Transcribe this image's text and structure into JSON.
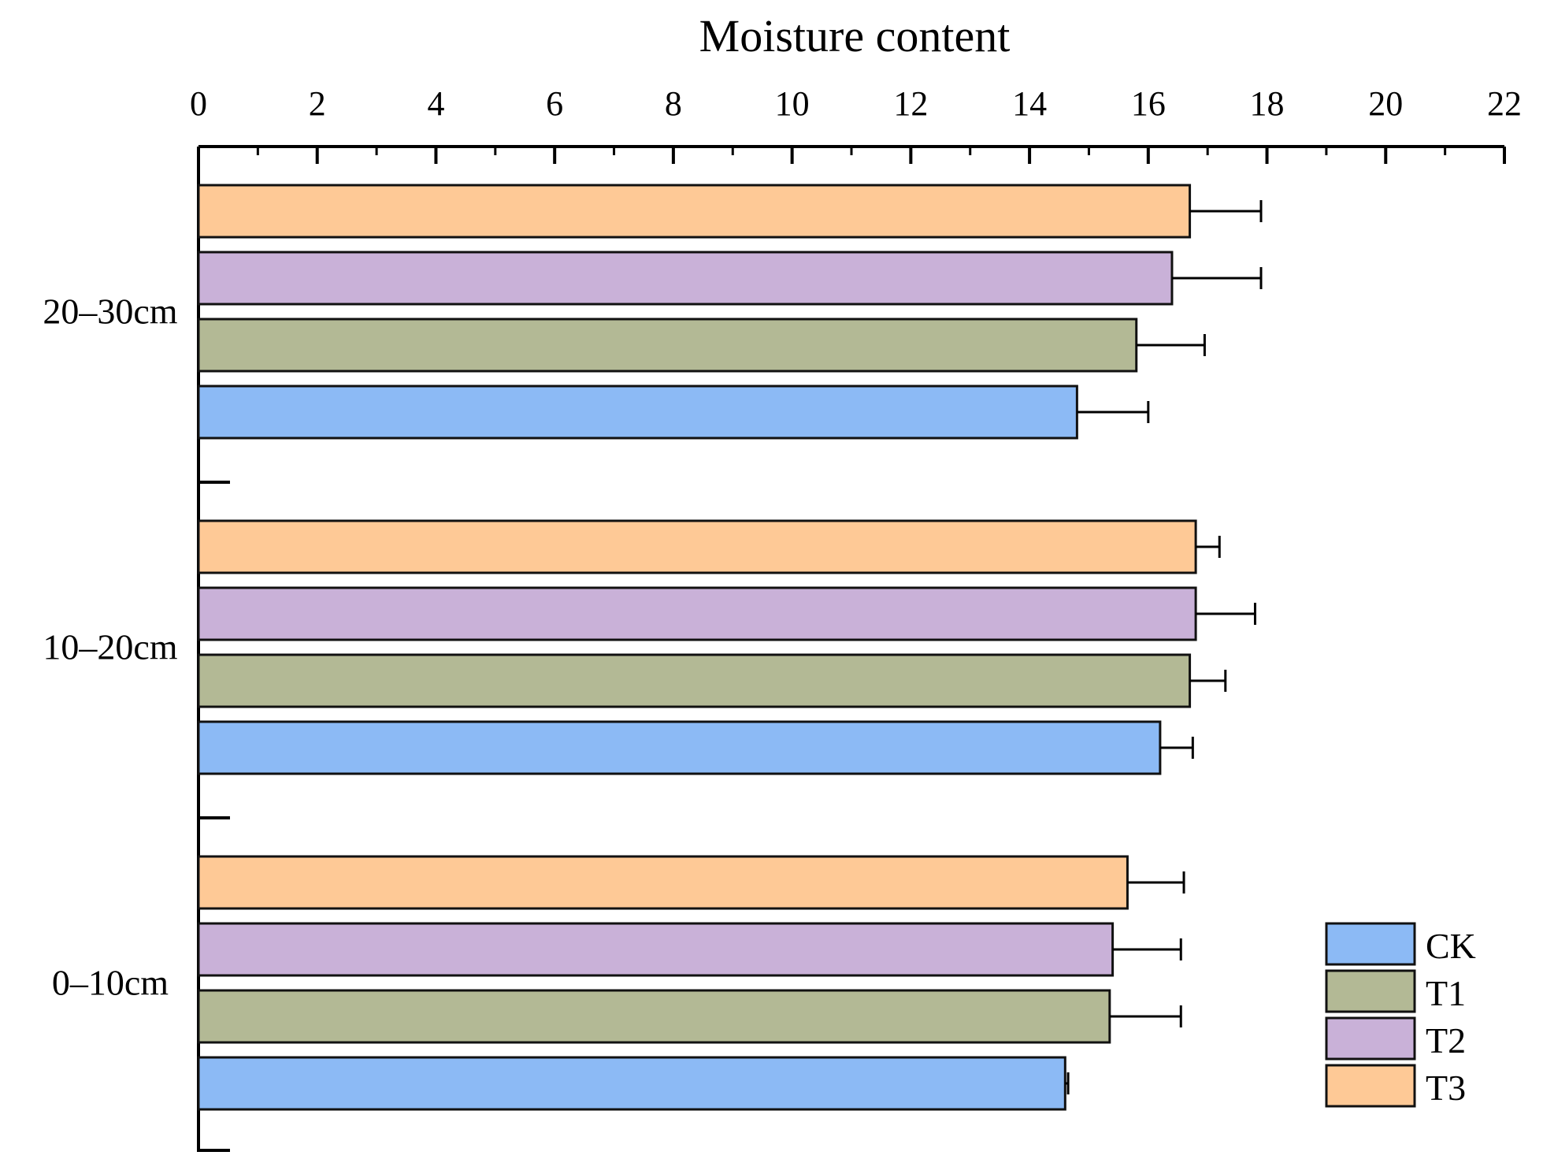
{
  "chart_data": {
    "type": "bar",
    "orientation": "horizontal",
    "title": "Moisture content",
    "xlim": [
      0,
      22
    ],
    "x_ticks": [
      "0",
      "2",
      "4",
      "6",
      "8",
      "10",
      "12",
      "14",
      "16",
      "18",
      "20",
      "22"
    ],
    "axis_position": "top",
    "grid": false,
    "legend_position": "bottom-right",
    "categories": [
      "20–30cm",
      "10–20cm",
      "0–10cm"
    ],
    "series": [
      {
        "name": "CK",
        "color": "#8cbaf5",
        "values": [
          14.8,
          16.2,
          14.6
        ],
        "errors": [
          1.2,
          0.55,
          0.05
        ]
      },
      {
        "name": "T1",
        "color": "#b3b995",
        "values": [
          15.8,
          16.7,
          15.35
        ],
        "errors": [
          1.15,
          0.6,
          1.2
        ]
      },
      {
        "name": "T2",
        "color": "#c9b1d8",
        "values": [
          16.4,
          16.8,
          15.4
        ],
        "errors": [
          1.5,
          1.0,
          1.15
        ]
      },
      {
        "name": "T3",
        "color": "#fec996",
        "values": [
          16.7,
          16.8,
          15.65
        ],
        "errors": [
          1.2,
          0.4,
          0.95
        ]
      }
    ]
  }
}
